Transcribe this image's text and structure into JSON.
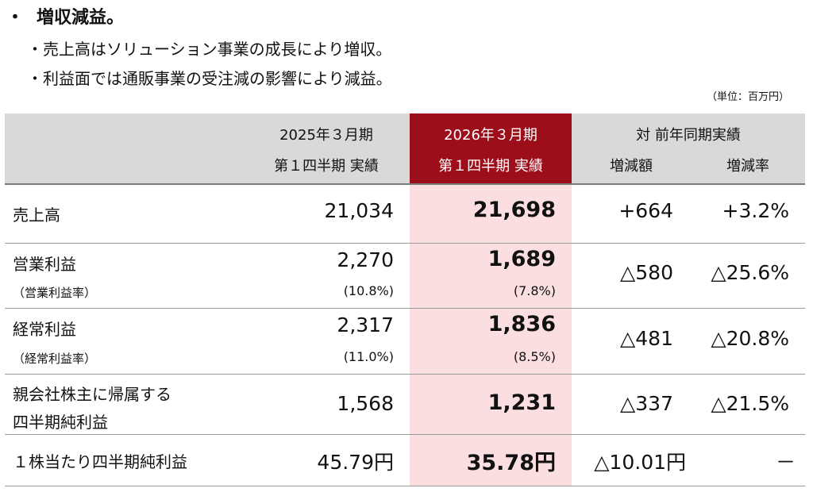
{
  "heading": {
    "bullet": "・",
    "text": "増収減益。"
  },
  "subs": [
    "・売上高はソリューション事業の成長により増収。",
    "・利益面では通販事業の受注減の影響により減益。"
  ],
  "unit_note": "（単位：百万円）",
  "table": {
    "headers": {
      "prev_line1": "2025年３月期",
      "prev_line2": "第１四半期 実績",
      "curr_line1": "2026年３月期",
      "curr_line2": "第１四半期 実績",
      "compare": "対 前年同期実績",
      "diff": "増減額",
      "rate": "増減率"
    },
    "rows": [
      {
        "label": "売上高",
        "prev": "21,034",
        "curr": "21,698",
        "diff": "+664",
        "rate": "+3.2%"
      },
      {
        "label": "営業利益",
        "sublabel": "（営業利益率）",
        "prev": "2,270",
        "prev_sub": "(10.8%)",
        "curr": "1,689",
        "curr_sub": "(7.8%)",
        "diff": "△580",
        "rate": "△25.6%"
      },
      {
        "label": "経常利益",
        "sublabel": "（経常利益率）",
        "prev": "2,317",
        "prev_sub": "(11.0%)",
        "curr": "1,836",
        "curr_sub": "(8.5%)",
        "diff": "△481",
        "rate": "△20.8%"
      },
      {
        "label_line1": "親会社株主に帰属する",
        "label_line2": "四半期純利益",
        "prev": "1,568",
        "curr": "1,231",
        "diff": "△337",
        "rate": "△21.5%"
      },
      {
        "label": "１株当たり四半期純利益",
        "prev": "45.79円",
        "curr": "35.78円",
        "diff": "△10.01円",
        "rate": "－"
      }
    ]
  },
  "colors": {
    "highlight_header": "#9c0f1a",
    "highlight_column": "#fbdfe0",
    "header_bg": "#d9d9d9"
  }
}
